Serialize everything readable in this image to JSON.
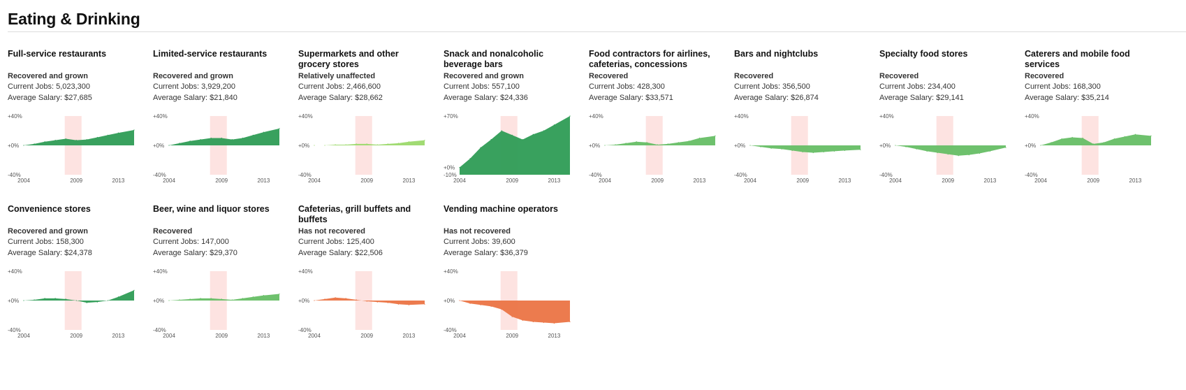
{
  "page": {
    "title": "Eating & Drinking"
  },
  "labels": {
    "jobs_prefix": "Current Jobs: ",
    "salary_prefix": "Average Salary: "
  },
  "colors": {
    "recession_band": "#fde3e1",
    "recovered_and_grown": "#2e9c55",
    "recovered": "#66be65",
    "relatively_unaffected": "#9cd96b",
    "has_not_recovered": "#eb7445"
  },
  "chart_data": [
    {
      "type": "area",
      "title": "Full-service restaurants",
      "status": "Recovered and grown",
      "status_key": "recovered_and_grown",
      "current_jobs": "5,023,300",
      "average_salary": "$27,685",
      "ylim": [
        -40,
        40
      ],
      "y_tick_labels": [
        "+40%",
        "+0%",
        "-40%"
      ],
      "x_tick_labels": [
        "2004",
        "2009",
        "2013"
      ],
      "recession": [
        2007.9,
        2009.5
      ],
      "series": [
        {
          "x": [
            2004,
            2005,
            2006,
            2007,
            2008,
            2009,
            2010,
            2011,
            2012,
            2013,
            2014.5
          ],
          "values": [
            0,
            2,
            5,
            7,
            9,
            7,
            8,
            11,
            14,
            17,
            21
          ]
        }
      ]
    },
    {
      "type": "area",
      "title": "Limited-service restaurants",
      "status": "Recovered and grown",
      "status_key": "recovered_and_grown",
      "current_jobs": "3,929,200",
      "average_salary": "$21,840",
      "ylim": [
        -40,
        40
      ],
      "y_tick_labels": [
        "+40%",
        "+0%",
        "-40%"
      ],
      "x_tick_labels": [
        "2004",
        "2009",
        "2013"
      ],
      "recession": [
        2007.9,
        2009.5
      ],
      "series": [
        {
          "x": [
            2004,
            2005,
            2006,
            2007,
            2008,
            2009,
            2010,
            2011,
            2012,
            2013,
            2014.5
          ],
          "values": [
            0,
            3,
            6,
            8,
            10,
            10,
            8,
            10,
            14,
            18,
            23
          ]
        }
      ]
    },
    {
      "type": "area",
      "title": "Supermarkets and other grocery stores",
      "status": "Relatively unaffected",
      "status_key": "relatively_unaffected",
      "current_jobs": "2,466,600",
      "average_salary": "$28,662",
      "ylim": [
        -40,
        40
      ],
      "y_tick_labels": [
        "+40%",
        "+0%",
        "-40%"
      ],
      "x_tick_labels": [
        "2004",
        "2009",
        "2013"
      ],
      "recession": [
        2007.9,
        2009.5
      ],
      "series": [
        {
          "x": [
            2004,
            2005,
            2006,
            2007,
            2008,
            2009,
            2010,
            2011,
            2012,
            2013,
            2014.5
          ],
          "values": [
            0,
            0,
            1,
            1,
            2,
            2,
            1,
            2,
            3,
            5,
            7
          ]
        }
      ]
    },
    {
      "type": "area",
      "title": "Snack and nonalcoholic beverage bars",
      "status": "Recovered and grown",
      "status_key": "recovered_and_grown",
      "current_jobs": "557,100",
      "average_salary": "$24,336",
      "ylim": [
        -10,
        70
      ],
      "y_tick_labels": [
        "+70%",
        "+0%",
        "-10%"
      ],
      "zero_at": 0,
      "x_tick_labels": [
        "2004",
        "2009",
        "2013"
      ],
      "recession": [
        2007.9,
        2009.5
      ],
      "series": [
        {
          "x": [
            2004,
            2005,
            2006,
            2007,
            2008,
            2009,
            2010,
            2011,
            2012,
            2013,
            2014.5
          ],
          "values": [
            0,
            12,
            27,
            38,
            50,
            44,
            38,
            45,
            50,
            58,
            70
          ]
        }
      ]
    },
    {
      "type": "area",
      "title": "Food contractors for airlines, cafeterias, concessions",
      "status": "Recovered",
      "status_key": "recovered",
      "current_jobs": "428,300",
      "average_salary": "$33,571",
      "ylim": [
        -40,
        40
      ],
      "y_tick_labels": [
        "+40%",
        "+0%",
        "-40%"
      ],
      "x_tick_labels": [
        "2004",
        "2009",
        "2013"
      ],
      "recession": [
        2007.9,
        2009.5
      ],
      "series": [
        {
          "x": [
            2004,
            2005,
            2006,
            2007,
            2008,
            2009,
            2010,
            2011,
            2012,
            2013,
            2014.5
          ],
          "values": [
            0,
            1,
            3,
            5,
            4,
            1,
            2,
            4,
            6,
            10,
            13
          ]
        }
      ]
    },
    {
      "type": "area",
      "title": "Bars and nightclubs",
      "status": "Recovered",
      "status_key": "recovered",
      "current_jobs": "356,500",
      "average_salary": "$26,874",
      "ylim": [
        -40,
        40
      ],
      "y_tick_labels": [
        "+40%",
        "+0%",
        "-40%"
      ],
      "x_tick_labels": [
        "2004",
        "2009",
        "2013"
      ],
      "recession": [
        2007.9,
        2009.5
      ],
      "series": [
        {
          "x": [
            2004,
            2005,
            2006,
            2007,
            2008,
            2009,
            2010,
            2011,
            2012,
            2013,
            2014.5
          ],
          "values": [
            0,
            -2,
            -4,
            -5,
            -7,
            -9,
            -10,
            -9,
            -8,
            -7,
            -6
          ]
        }
      ]
    },
    {
      "type": "area",
      "title": "Specialty food stores",
      "status": "Recovered",
      "status_key": "recovered",
      "current_jobs": "234,400",
      "average_salary": "$29,141",
      "ylim": [
        -40,
        40
      ],
      "y_tick_labels": [
        "+40%",
        "+0%",
        "-40%"
      ],
      "x_tick_labels": [
        "2004",
        "2009",
        "2013"
      ],
      "recession": [
        2007.9,
        2009.5
      ],
      "series": [
        {
          "x": [
            2004,
            2005,
            2006,
            2007,
            2008,
            2009,
            2010,
            2011,
            2012,
            2013,
            2014.5
          ],
          "values": [
            0,
            -2,
            -5,
            -8,
            -10,
            -12,
            -14,
            -13,
            -11,
            -8,
            -3
          ]
        }
      ]
    },
    {
      "type": "area",
      "title": "Caterers and mobile food services",
      "status": "Recovered",
      "status_key": "recovered",
      "current_jobs": "168,300",
      "average_salary": "$35,214",
      "ylim": [
        -40,
        40
      ],
      "y_tick_labels": [
        "+40%",
        "+0%",
        "-40%"
      ],
      "x_tick_labels": [
        "2004",
        "2009",
        "2013"
      ],
      "recession": [
        2007.9,
        2009.5
      ],
      "series": [
        {
          "x": [
            2004,
            2005,
            2006,
            2007,
            2008,
            2009,
            2010,
            2011,
            2012,
            2013,
            2014.5
          ],
          "values": [
            0,
            4,
            9,
            11,
            10,
            2,
            4,
            9,
            12,
            15,
            13
          ]
        }
      ]
    },
    {
      "type": "area",
      "title": "Convenience stores",
      "status": "Recovered and grown",
      "status_key": "recovered_and_grown",
      "current_jobs": "158,300",
      "average_salary": "$24,378",
      "ylim": [
        -40,
        40
      ],
      "y_tick_labels": [
        "+40%",
        "+0%",
        "-40%"
      ],
      "x_tick_labels": [
        "2004",
        "2009",
        "2013"
      ],
      "recession": [
        2007.9,
        2009.5
      ],
      "series": [
        {
          "x": [
            2004,
            2005,
            2006,
            2007,
            2008,
            2009,
            2010,
            2011,
            2012,
            2013,
            2014.5
          ],
          "values": [
            0,
            1,
            3,
            3,
            2,
            0,
            -3,
            -2,
            0,
            5,
            14
          ]
        }
      ]
    },
    {
      "type": "area",
      "title": "Beer, wine and liquor stores",
      "status": "Recovered",
      "status_key": "recovered",
      "current_jobs": "147,000",
      "average_salary": "$29,370",
      "ylim": [
        -40,
        40
      ],
      "y_tick_labels": [
        "+40%",
        "+0%",
        "-40%"
      ],
      "x_tick_labels": [
        "2004",
        "2009",
        "2013"
      ],
      "recession": [
        2007.9,
        2009.5
      ],
      "series": [
        {
          "x": [
            2004,
            2005,
            2006,
            2007,
            2008,
            2009,
            2010,
            2011,
            2012,
            2013,
            2014.5
          ],
          "values": [
            0,
            1,
            2,
            3,
            3,
            2,
            1,
            3,
            5,
            7,
            9
          ]
        }
      ]
    },
    {
      "type": "area",
      "title": "Cafeterias, grill buffets and buffets",
      "status": "Has not recovered",
      "status_key": "has_not_recovered",
      "current_jobs": "125,400",
      "average_salary": "$22,506",
      "ylim": [
        -40,
        40
      ],
      "y_tick_labels": [
        "+40%",
        "+0%",
        "-40%"
      ],
      "x_tick_labels": [
        "2004",
        "2009",
        "2013"
      ],
      "recession": [
        2007.9,
        2009.5
      ],
      "series": [
        {
          "x": [
            2004,
            2005,
            2006,
            2007,
            2008,
            2009,
            2010,
            2011,
            2012,
            2013,
            2014.5
          ],
          "values": [
            0,
            2,
            4,
            3,
            1,
            -1,
            -2,
            -3,
            -5,
            -6,
            -5
          ]
        }
      ]
    },
    {
      "type": "area",
      "title": "Vending machine operators",
      "status": "Has not recovered",
      "status_key": "has_not_recovered",
      "current_jobs": "39,600",
      "average_salary": "$36,379",
      "ylim": [
        -40,
        40
      ],
      "y_tick_labels": [
        "+40%",
        "+0%",
        "-40%"
      ],
      "x_tick_labels": [
        "2004",
        "2009",
        "2013"
      ],
      "recession": [
        2007.9,
        2009.5
      ],
      "series": [
        {
          "x": [
            2004,
            2005,
            2006,
            2007,
            2008,
            2009,
            2010,
            2011,
            2012,
            2013,
            2014.5
          ],
          "values": [
            0,
            -4,
            -6,
            -8,
            -12,
            -22,
            -27,
            -29,
            -30,
            -31,
            -29
          ]
        }
      ]
    }
  ]
}
